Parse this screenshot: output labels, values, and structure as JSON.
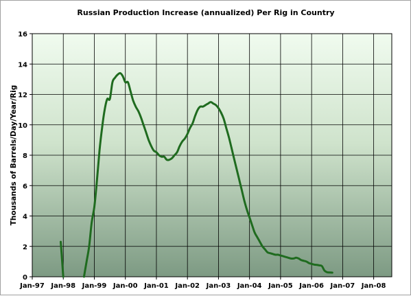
{
  "chart_data": {
    "type": "line",
    "title": "Russian Production Increase (annualized) Per Rig in Country",
    "xlabel": "",
    "ylabel": "Thousands of Barrels/Day/Year/Rig",
    "ylim": [
      0,
      16
    ],
    "yticks": [
      0,
      2,
      4,
      6,
      8,
      10,
      12,
      14,
      16
    ],
    "xlim": [
      "1997-01",
      "2008-08"
    ],
    "xticks": [
      {
        "date": "1997-01",
        "label": "Jan-97"
      },
      {
        "date": "1998-01",
        "label": "Jan-98"
      },
      {
        "date": "1999-01",
        "label": "Jan-99"
      },
      {
        "date": "2000-01",
        "label": "Jan-00"
      },
      {
        "date": "2001-01",
        "label": "Jan-01"
      },
      {
        "date": "2002-01",
        "label": "Jan-02"
      },
      {
        "date": "2003-01",
        "label": "Jan-03"
      },
      {
        "date": "2004-01",
        "label": "Jan-04"
      },
      {
        "date": "2005-01",
        "label": "Jan-05"
      },
      {
        "date": "2006-01",
        "label": "Jan-06"
      },
      {
        "date": "2007-01",
        "label": "Jan-07"
      },
      {
        "date": "2008-01",
        "label": "Jan-08"
      }
    ],
    "grid": true,
    "background": "vertical gradient, pale green at top to grey-green at bottom",
    "line_color": "#1f6b1f",
    "series": [
      {
        "values": [
          [
            "1997-12",
            2.3
          ],
          [
            "1998-01",
            0.0
          ]
        ]
      },
      {
        "values": [
          [
            "1998-09",
            0.0
          ],
          [
            "1998-10",
            1.0
          ],
          [
            "1998-11",
            2.0
          ],
          [
            "1998-12",
            3.6
          ],
          [
            "1999-01",
            4.6
          ],
          [
            "1999-02",
            6.3
          ],
          [
            "1999-03",
            8.3
          ],
          [
            "1999-04",
            9.8
          ],
          [
            "1999-05",
            11.0
          ],
          [
            "1999-06",
            11.7
          ],
          [
            "1999-07",
            11.7
          ],
          [
            "1999-08",
            12.8
          ],
          [
            "1999-09",
            13.1
          ],
          [
            "1999-10",
            13.3
          ],
          [
            "1999-11",
            13.4
          ],
          [
            "1999-12",
            13.2
          ],
          [
            "2000-01",
            12.8
          ],
          [
            "2000-02",
            12.8
          ],
          [
            "2000-03",
            12.2
          ],
          [
            "2000-04",
            11.6
          ],
          [
            "2000-05",
            11.2
          ],
          [
            "2000-06",
            10.9
          ],
          [
            "2000-07",
            10.5
          ],
          [
            "2000-08",
            10.0
          ],
          [
            "2000-09",
            9.5
          ],
          [
            "2000-10",
            9.0
          ],
          [
            "2000-11",
            8.6
          ],
          [
            "2000-12",
            8.3
          ],
          [
            "2001-01",
            8.2
          ],
          [
            "2001-02",
            8.0
          ],
          [
            "2001-03",
            7.9
          ],
          [
            "2001-04",
            7.9
          ],
          [
            "2001-05",
            7.7
          ],
          [
            "2001-06",
            7.7
          ],
          [
            "2001-07",
            7.8
          ],
          [
            "2001-08",
            8.0
          ],
          [
            "2001-09",
            8.2
          ],
          [
            "2001-10",
            8.6
          ],
          [
            "2001-11",
            8.9
          ],
          [
            "2001-12",
            9.1
          ],
          [
            "2002-01",
            9.4
          ],
          [
            "2002-02",
            9.8
          ],
          [
            "2002-03",
            10.1
          ],
          [
            "2002-04",
            10.6
          ],
          [
            "2002-05",
            11.0
          ],
          [
            "2002-06",
            11.2
          ],
          [
            "2002-07",
            11.2
          ],
          [
            "2002-08",
            11.3
          ],
          [
            "2002-09",
            11.4
          ],
          [
            "2002-10",
            11.5
          ],
          [
            "2002-11",
            11.4
          ],
          [
            "2002-12",
            11.3
          ],
          [
            "2003-01",
            11.1
          ],
          [
            "2003-02",
            10.8
          ],
          [
            "2003-03",
            10.4
          ],
          [
            "2003-04",
            9.8
          ],
          [
            "2003-05",
            9.2
          ],
          [
            "2003-06",
            8.5
          ],
          [
            "2003-07",
            7.8
          ],
          [
            "2003-08",
            7.1
          ],
          [
            "2003-09",
            6.4
          ],
          [
            "2003-10",
            5.7
          ],
          [
            "2003-11",
            5.0
          ],
          [
            "2003-12",
            4.4
          ],
          [
            "2004-01",
            3.9
          ],
          [
            "2004-02",
            3.4
          ],
          [
            "2004-03",
            2.9
          ],
          [
            "2004-04",
            2.6
          ],
          [
            "2004-05",
            2.3
          ],
          [
            "2004-06",
            2.0
          ],
          [
            "2004-07",
            1.8
          ],
          [
            "2004-08",
            1.6
          ],
          [
            "2004-09",
            1.55
          ],
          [
            "2004-10",
            1.5
          ],
          [
            "2004-11",
            1.45
          ],
          [
            "2004-12",
            1.45
          ],
          [
            "2005-01",
            1.4
          ],
          [
            "2005-02",
            1.35
          ],
          [
            "2005-03",
            1.3
          ],
          [
            "2005-04",
            1.25
          ],
          [
            "2005-05",
            1.2
          ],
          [
            "2005-06",
            1.2
          ],
          [
            "2005-07",
            1.25
          ],
          [
            "2005-08",
            1.2
          ],
          [
            "2005-09",
            1.1
          ],
          [
            "2005-10",
            1.05
          ],
          [
            "2005-11",
            1.0
          ],
          [
            "2005-12",
            0.9
          ],
          [
            "2006-01",
            0.85
          ],
          [
            "2006-02",
            0.8
          ],
          [
            "2006-03",
            0.78
          ],
          [
            "2006-04",
            0.75
          ],
          [
            "2006-05",
            0.7
          ],
          [
            "2006-06",
            0.4
          ],
          [
            "2006-07",
            0.3
          ],
          [
            "2006-08",
            0.28
          ],
          [
            "2006-09",
            0.27
          ]
        ]
      }
    ]
  }
}
